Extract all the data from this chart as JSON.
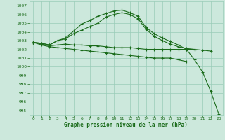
{
  "title": "Graphe pression niveau de la mer (hPa)",
  "background_color": "#cce8dc",
  "grid_color": "#99ccb8",
  "line_color": "#1a6b1a",
  "marker": "+",
  "xlim": [
    -0.5,
    23.5
  ],
  "ylim": [
    994.5,
    1007.5
  ],
  "yticks": [
    995,
    996,
    997,
    998,
    999,
    1000,
    1001,
    1002,
    1003,
    1004,
    1005,
    1006,
    1007
  ],
  "xticks": [
    0,
    1,
    2,
    3,
    4,
    5,
    6,
    7,
    8,
    9,
    10,
    11,
    12,
    13,
    14,
    15,
    16,
    17,
    18,
    19,
    20,
    21,
    22,
    23
  ],
  "lines": [
    [
      1002.8,
      1002.7,
      1002.5,
      1003.0,
      1003.3,
      1004.1,
      1004.9,
      1005.3,
      1005.8,
      1006.1,
      1006.4,
      1006.5,
      1006.2,
      1005.8,
      1004.5,
      1003.8,
      1003.3,
      1002.9,
      1002.5,
      1002.0,
      1000.8,
      999.4,
      997.2,
      994.6
    ],
    [
      1002.8,
      1002.7,
      1002.5,
      1003.0,
      1003.2,
      1003.8,
      1004.2,
      1004.6,
      1005.0,
      1005.7,
      1006.0,
      1006.2,
      1006.0,
      1005.5,
      1004.3,
      1003.5,
      1003.0,
      1002.6,
      1002.3,
      1002.1,
      1002.0,
      1001.9,
      1001.8,
      null
    ],
    [
      1002.8,
      1002.6,
      1002.4,
      1002.5,
      1002.6,
      1002.5,
      1002.5,
      1002.4,
      1002.4,
      1002.3,
      1002.2,
      1002.2,
      1002.2,
      1002.1,
      1002.0,
      1002.0,
      1002.0,
      1002.0,
      1002.0,
      1002.0,
      1002.0,
      null,
      null,
      null
    ],
    [
      1002.8,
      1002.5,
      1002.3,
      1002.2,
      1002.1,
      1002.0,
      1001.9,
      1001.8,
      1001.7,
      1001.6,
      1001.5,
      1001.4,
      1001.3,
      1001.2,
      1001.1,
      1001.0,
      1001.0,
      1001.0,
      1000.8,
      1000.6,
      null,
      null,
      null,
      null
    ]
  ]
}
